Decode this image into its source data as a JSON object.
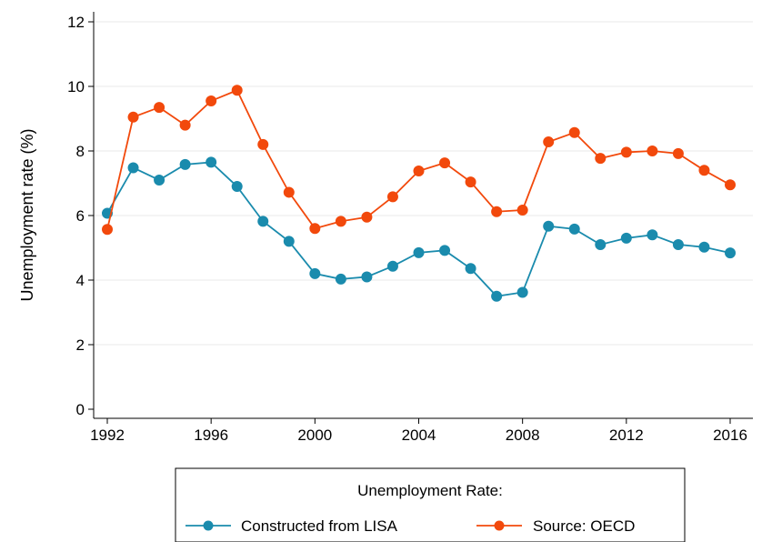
{
  "chart_data": {
    "type": "line",
    "title": "",
    "xlabel": "",
    "ylabel": "Unemployment rate (%)",
    "xlim": [
      1992,
      2016
    ],
    "ylim": [
      0,
      12
    ],
    "x_ticks": [
      1992,
      1996,
      2000,
      2004,
      2008,
      2012,
      2016
    ],
    "y_ticks": [
      0,
      2,
      4,
      6,
      8,
      10,
      12
    ],
    "grid": "horizontal",
    "legend": {
      "title": "Unemployment Rate:",
      "placement": "bottom"
    },
    "x": [
      1992,
      1993,
      1994,
      1995,
      1996,
      1997,
      1998,
      1999,
      2000,
      2001,
      2002,
      2003,
      2004,
      2005,
      2006,
      2007,
      2008,
      2009,
      2010,
      2011,
      2012,
      2013,
      2014,
      2015,
      2016
    ],
    "series": [
      {
        "name": "Constructed from LISA",
        "color": "#1a8bad",
        "values": [
          6.07,
          7.48,
          7.1,
          7.58,
          7.65,
          6.9,
          5.82,
          5.2,
          4.2,
          4.03,
          4.1,
          4.43,
          4.85,
          4.92,
          4.36,
          3.5,
          3.62,
          5.67,
          5.58,
          5.1,
          5.3,
          5.4,
          5.1,
          5.02,
          4.84
        ]
      },
      {
        "name": "Source: OECD",
        "color": "#f2490c",
        "values": [
          5.57,
          9.05,
          9.35,
          8.8,
          9.55,
          9.88,
          8.2,
          6.72,
          5.6,
          5.82,
          5.95,
          6.58,
          7.38,
          7.63,
          7.04,
          6.12,
          6.17,
          8.28,
          8.57,
          7.77,
          7.96,
          8.0,
          7.92,
          7.4,
          6.95
        ]
      }
    ]
  }
}
